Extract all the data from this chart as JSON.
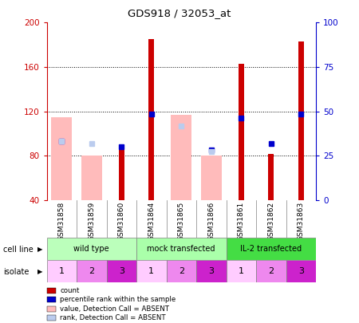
{
  "title": "GDS918 / 32053_at",
  "samples": [
    "GSM31858",
    "GSM31859",
    "GSM31860",
    "GSM31864",
    "GSM31865",
    "GSM31866",
    "GSM31861",
    "GSM31862",
    "GSM31863"
  ],
  "count_values": [
    null,
    null,
    88,
    185,
    null,
    null,
    163,
    82,
    183
  ],
  "percentile_values": [
    93,
    null,
    88,
    118,
    null,
    85,
    114,
    91,
    118
  ],
  "pink_bar_values": [
    115,
    80,
    null,
    null,
    117,
    80,
    null,
    null,
    null
  ],
  "light_blue_values": [
    93,
    91,
    null,
    null,
    107,
    84,
    null,
    null,
    null
  ],
  "ylim": [
    40,
    200
  ],
  "y_ticks_left": [
    40,
    80,
    120,
    160,
    200
  ],
  "y_ticks_right": [
    0,
    25,
    50,
    75,
    100
  ],
  "cell_line_groups": [
    {
      "label": "wild type",
      "cols": [
        0,
        1,
        2
      ],
      "color": "#bbffbb"
    },
    {
      "label": "mock transfected",
      "cols": [
        3,
        4,
        5
      ],
      "color": "#aaffaa"
    },
    {
      "label": "IL-2 transfected",
      "cols": [
        6,
        7,
        8
      ],
      "color": "#44dd44"
    }
  ],
  "isolate_values": [
    "1",
    "2",
    "3",
    "1",
    "2",
    "3",
    "1",
    "2",
    "3"
  ],
  "iso_colors": [
    "#ffccff",
    "#ee88ee",
    "#cc22cc",
    "#ffccff",
    "#ee88ee",
    "#cc22cc",
    "#ffccff",
    "#ee88ee",
    "#cc22cc"
  ],
  "color_count": "#cc0000",
  "color_percentile": "#0000cc",
  "color_pink_bar": "#ffbbbb",
  "color_light_blue": "#bbccee",
  "bg_color": "#ffffff",
  "left_label_color": "#cc0000",
  "right_label_color": "#0000cc"
}
